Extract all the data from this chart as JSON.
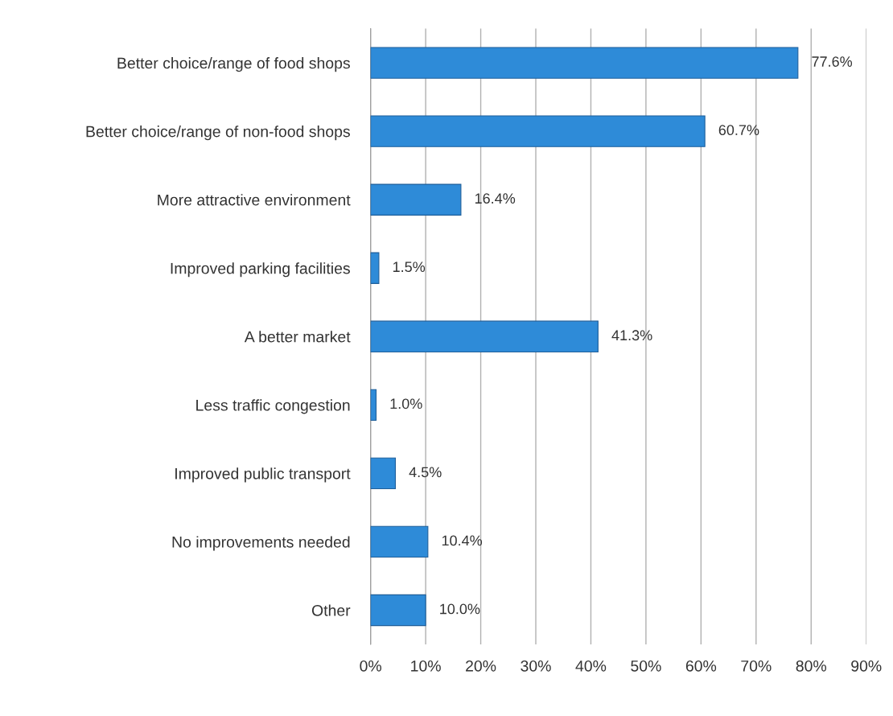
{
  "chart_data": {
    "type": "bar",
    "orientation": "horizontal",
    "categories": [
      "Better choice/range of food shops",
      "Better choice/range of non-food shops",
      "More attractive environment",
      "Improved parking facilities",
      "A better market",
      "Less traffic congestion",
      "Improved public transport",
      "No improvements needed",
      "Other"
    ],
    "values": [
      77.6,
      60.7,
      16.4,
      1.5,
      41.3,
      1.0,
      4.5,
      10.4,
      10.0
    ],
    "value_labels": [
      "77.6%",
      "60.7%",
      "16.4%",
      "1.5%",
      "41.3%",
      "1.0%",
      "4.5%",
      "10.4%",
      "10.0%"
    ],
    "color": "#2e8bd8",
    "xlim": [
      0,
      90
    ],
    "xticks": [
      {
        "value": 0,
        "label": "0%"
      },
      {
        "value": 10,
        "label": "10%"
      },
      {
        "value": 20,
        "label": "20%"
      },
      {
        "value": 30,
        "label": "30%"
      },
      {
        "value": 40,
        "label": "40%"
      },
      {
        "value": 50,
        "label": "50%"
      },
      {
        "value": 60,
        "label": "60%"
      },
      {
        "value": 70,
        "label": "70%"
      },
      {
        "value": 80,
        "label": "80%"
      },
      {
        "value": 90,
        "label": "90%"
      }
    ],
    "grid": "x"
  }
}
